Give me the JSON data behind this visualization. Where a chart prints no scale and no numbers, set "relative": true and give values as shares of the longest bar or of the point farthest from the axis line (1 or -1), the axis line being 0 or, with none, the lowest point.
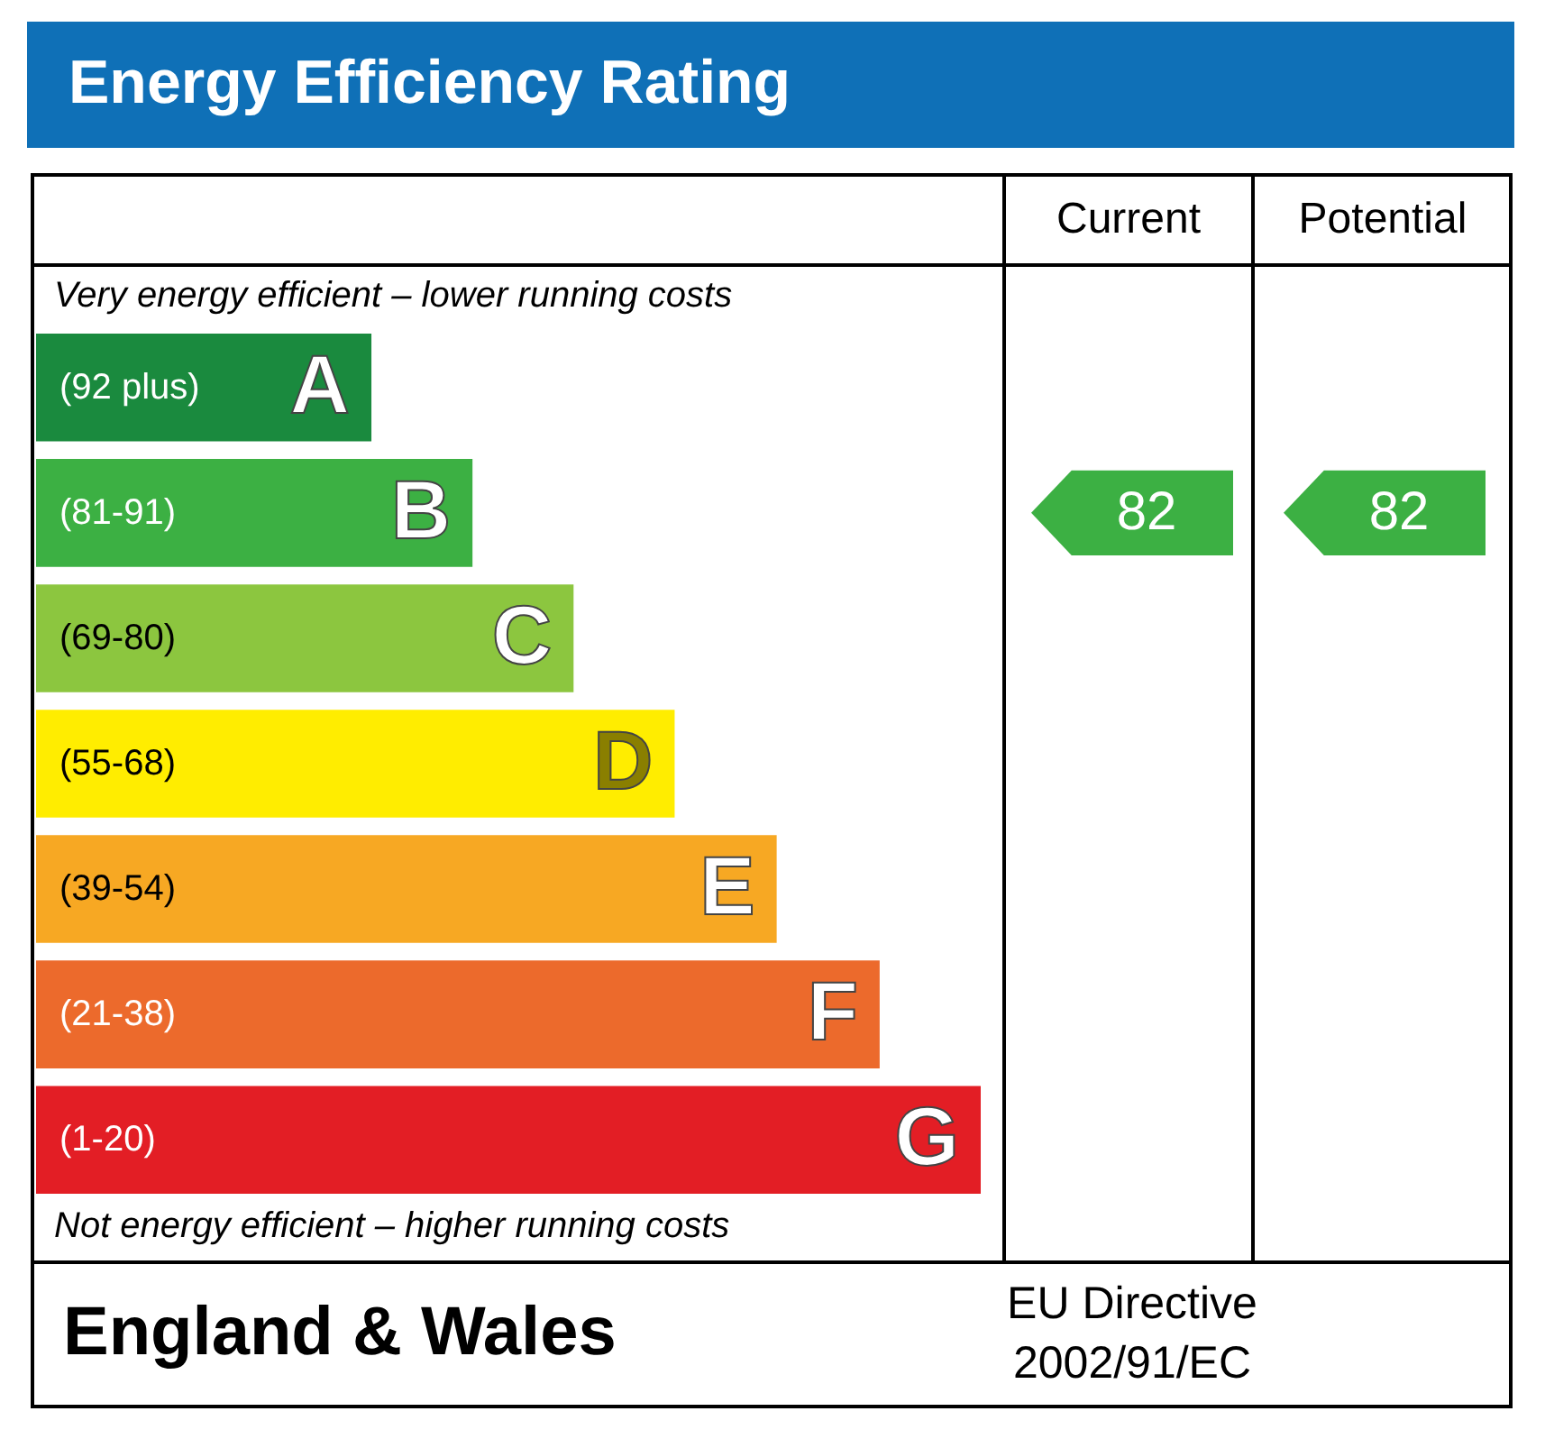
{
  "chart_data": {
    "type": "bar",
    "orientation": "horizontal",
    "relative": true,
    "title": "Energy Efficiency Rating",
    "categories": [
      "A",
      "B",
      "C",
      "D",
      "E",
      "F",
      "G"
    ],
    "values": [
      0.355,
      0.462,
      0.569,
      0.676,
      0.784,
      0.893,
      1
    ],
    "colors": [
      "#1a8a3e",
      "#3cb043",
      "#8cc63f",
      "#ffed00",
      "#f7a823",
      "#ec6a2c",
      "#e31e25"
    ],
    "annotations": [
      "Current",
      "Potential",
      "Very energy efficient – lower running costs",
      "Not energy efficient – higher running costs",
      "England & Wales",
      "EU Directive",
      "2002/91/EC",
      "(92 plus)",
      "(81-91)",
      "(69-80)",
      "(55-68)",
      "(39-54)",
      "(21-38)",
      "(1-20)",
      "82",
      "82"
    ]
  }
}
